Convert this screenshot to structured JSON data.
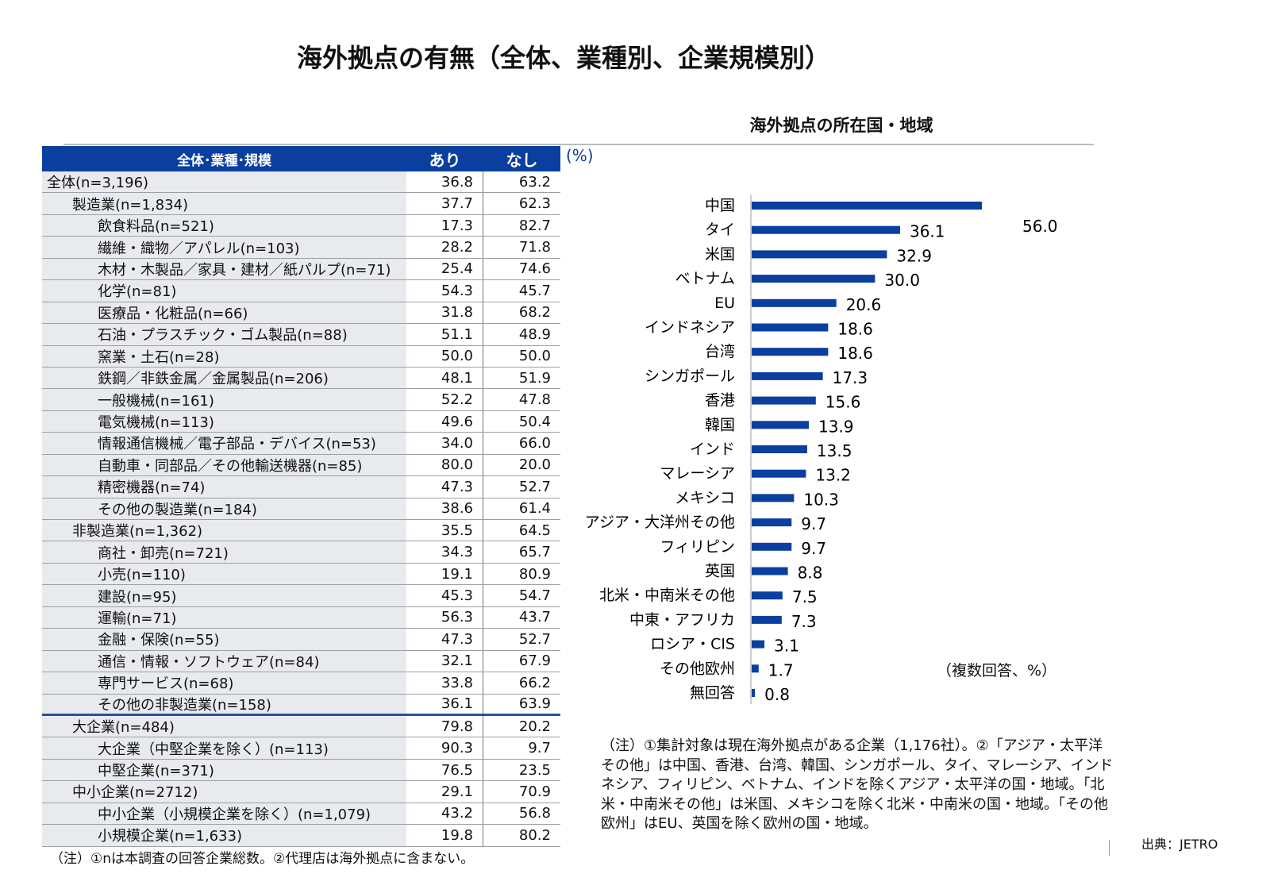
{
  "title": "海外拠点の有無（全体、業種別、企業規模別）",
  "table": {
    "headers": [
      "全体･業種･規模",
      "あり",
      "なし"
    ],
    "unit": "(%)",
    "rows": [
      {
        "label": "全体(n=3,196)",
        "level": 0,
        "yes": "36.8",
        "no": "63.2"
      },
      {
        "label": "製造業(n=1,834)",
        "level": 1,
        "yes": "37.7",
        "no": "62.3"
      },
      {
        "label": "飲食料品(n=521)",
        "level": 2,
        "yes": "17.3",
        "no": "82.7"
      },
      {
        "label": "繊維・織物／アパレル(n=103)",
        "level": 2,
        "yes": "28.2",
        "no": "71.8"
      },
      {
        "label": "木材・木製品／家具・建材／紙パルプ(n=71)",
        "level": 2,
        "yes": "25.4",
        "no": "74.6"
      },
      {
        "label": "化学(n=81)",
        "level": 2,
        "yes": "54.3",
        "no": "45.7"
      },
      {
        "label": "医療品・化粧品(n=66)",
        "level": 2,
        "yes": "31.8",
        "no": "68.2"
      },
      {
        "label": "石油・プラスチック・ゴム製品(n=88)",
        "level": 2,
        "yes": "51.1",
        "no": "48.9"
      },
      {
        "label": "窯業・土石(n=28)",
        "level": 2,
        "yes": "50.0",
        "no": "50.0"
      },
      {
        "label": "鉄鋼／非鉄金属／金属製品(n=206)",
        "level": 2,
        "yes": "48.1",
        "no": "51.9"
      },
      {
        "label": "一般機械(n=161)",
        "level": 2,
        "yes": "52.2",
        "no": "47.8"
      },
      {
        "label": "電気機械(n=113)",
        "level": 2,
        "yes": "49.6",
        "no": "50.4"
      },
      {
        "label": "情報通信機械／電子部品・デバイス(n=53)",
        "level": 2,
        "yes": "34.0",
        "no": "66.0"
      },
      {
        "label": "自動車・同部品／その他輸送機器(n=85)",
        "level": 2,
        "yes": "80.0",
        "no": "20.0"
      },
      {
        "label": "精密機器(n=74)",
        "level": 2,
        "yes": "47.3",
        "no": "52.7"
      },
      {
        "label": "その他の製造業(n=184)",
        "level": 2,
        "yes": "38.6",
        "no": "61.4"
      },
      {
        "label": "非製造業(n=1,362)",
        "level": 1,
        "yes": "35.5",
        "no": "64.5"
      },
      {
        "label": "商社・卸売(n=721)",
        "level": 2,
        "yes": "34.3",
        "no": "65.7"
      },
      {
        "label": "小売(n=110)",
        "level": 2,
        "yes": "19.1",
        "no": "80.9"
      },
      {
        "label": "建設(n=95)",
        "level": 2,
        "yes": "45.3",
        "no": "54.7"
      },
      {
        "label": "運輸(n=71)",
        "level": 2,
        "yes": "56.3",
        "no": "43.7"
      },
      {
        "label": "金融・保険(n=55)",
        "level": 2,
        "yes": "47.3",
        "no": "52.7"
      },
      {
        "label": "通信・情報・ソフトウェア(n=84)",
        "level": 2,
        "yes": "32.1",
        "no": "67.9"
      },
      {
        "label": "専門サービス(n=68)",
        "level": 2,
        "yes": "33.8",
        "no": "66.2"
      },
      {
        "label": "その他の非製造業(n=158)",
        "level": 2,
        "yes": "36.1",
        "no": "63.9"
      },
      {
        "label": "大企業(n=484)",
        "level": 1,
        "yes": "79.8",
        "no": "20.2"
      },
      {
        "label": "大企業（中堅企業を除く）(n=113)",
        "level": 2,
        "yes": "90.3",
        "no": "9.7"
      },
      {
        "label": "中堅企業(n=371)",
        "level": 2,
        "yes": "76.5",
        "no": "23.5"
      },
      {
        "label": "中小企業(n=2712)",
        "level": 1,
        "yes": "29.1",
        "no": "70.9"
      },
      {
        "label": "中小企業（小規模企業を除く）(n=1,079)",
        "level": 2,
        "yes": "43.2",
        "no": "56.8"
      },
      {
        "label": "小規模企業(n=1,633)",
        "level": 2,
        "yes": "19.8",
        "no": "80.2"
      }
    ],
    "note": "（注）①nは本調査の回答企業総数。②代理店は海外拠点に含まない。"
  },
  "chart_data": {
    "type": "bar",
    "orientation": "horizontal",
    "title": "海外拠点の所在国・地域",
    "categories": [
      "中国",
      "タイ",
      "米国",
      "ベトナム",
      "EU",
      "インドネシア",
      "台湾",
      "シンガポール",
      "香港",
      "韓国",
      "インド",
      "マレーシア",
      "メキシコ",
      "アジア・大洋州その他",
      "フィリピン",
      "英国",
      "北米・中南米その他",
      "中東・アフリカ",
      "ロシア・CIS",
      "その他欧州",
      "無回答"
    ],
    "values": [
      56.0,
      36.1,
      32.9,
      30.0,
      20.6,
      18.6,
      18.6,
      17.3,
      15.6,
      13.9,
      13.5,
      13.2,
      10.3,
      9.7,
      9.7,
      8.8,
      7.5,
      7.3,
      3.1,
      1.7,
      0.8
    ],
    "color": "#0a3f9f",
    "unit_note": "（複数回答、%）",
    "note": "（注）①集計対象は現在海外拠点がある企業（1,176社）。②「アジア・太平洋その他」は中国、香港、台湾、韓国、シンガポール、タイ、マレーシア、インドネシア、フィリピン、ベトナム、インドを除くアジア・太平洋の国・地域。「北米・中南米その他」は米国、メキシコを除く北米・中南米の国・地域。「その他欧州」はEU、英国を除く欧州の国・地域。"
  },
  "source": "出典：JETRO"
}
